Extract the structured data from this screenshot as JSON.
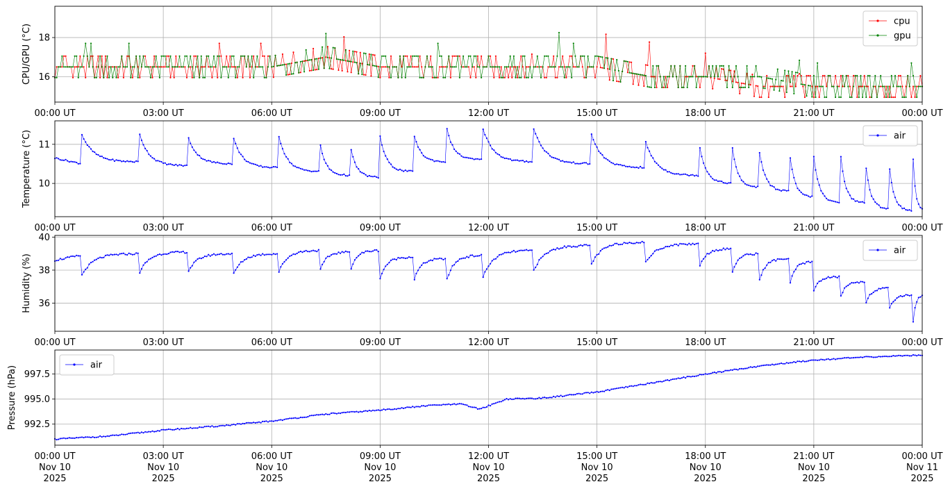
{
  "x_ticks": [
    "00:00 UT",
    "03:00 UT",
    "06:00 UT",
    "09:00 UT",
    "12:00 UT",
    "15:00 UT",
    "18:00 UT",
    "21:00 UT",
    "00:00 UT"
  ],
  "x_ticks_bottom_date": [
    [
      "Nov 10",
      "2025"
    ],
    [
      "Nov 10",
      "2025"
    ],
    [
      "Nov 10",
      "2025"
    ],
    [
      "Nov 10",
      "2025"
    ],
    [
      "Nov 10",
      "2025"
    ],
    [
      "Nov 10",
      "2025"
    ],
    [
      "Nov 10",
      "2025"
    ],
    [
      "Nov 10",
      "2025"
    ],
    [
      "Nov 11",
      "2025"
    ]
  ],
  "chart_data": [
    {
      "type": "line",
      "ylabel": "CPU/GPU (°C)",
      "xlim": [
        "2025-11-10T00:00",
        "2025-11-11T00:00"
      ],
      "ylim": [
        14.7,
        19.6
      ],
      "yticks": [
        16,
        18
      ],
      "grid": true,
      "legend": "top-right",
      "series": [
        {
          "name": "cpu",
          "color": "#ff0000",
          "x": [
            "00:00",
            "00:45",
            "02:00",
            "03:40",
            "04:50",
            "06:00",
            "07:30",
            "09:00",
            "10:30",
            "12:00",
            "13:30",
            "15:00",
            "16:30",
            "18:00",
            "19:30",
            "21:00",
            "22:30",
            "24:00"
          ],
          "values": [
            16.5,
            16.5,
            16.5,
            16.5,
            16.5,
            16.5,
            17.0,
            16.5,
            16.5,
            16.5,
            16.5,
            16.5,
            16.0,
            16.0,
            15.5,
            15.5,
            15.5,
            15.5
          ]
        },
        {
          "name": "gpu",
          "color": "#008000",
          "x": [
            "00:00",
            "00:45",
            "02:00",
            "03:40",
            "04:50",
            "06:00",
            "07:30",
            "09:00",
            "10:30",
            "12:00",
            "13:30",
            "15:00",
            "16:30",
            "18:00",
            "19:30",
            "21:00",
            "22:30",
            "24:00"
          ],
          "values": [
            16.5,
            16.5,
            16.5,
            16.5,
            16.5,
            16.5,
            17.0,
            16.5,
            16.5,
            16.5,
            16.5,
            16.5,
            16.0,
            16.0,
            16.0,
            15.5,
            15.5,
            15.5
          ]
        }
      ]
    },
    {
      "type": "line",
      "ylabel": "Temperature (°C)",
      "xlim": [
        "2025-11-10T00:00",
        "2025-11-11T00:00"
      ],
      "ylim": [
        9.15,
        11.6
      ],
      "yticks": [
        10,
        11
      ],
      "grid": true,
      "legend": "top-right",
      "peaks": {
        "x": [
          "00:45",
          "02:20",
          "03:40",
          "04:55",
          "06:10",
          "07:20",
          "08:10",
          "09:00",
          "09:55",
          "10:50",
          "11:50",
          "13:15",
          "14:50",
          "16:20",
          "17:50",
          "18:45",
          "19:30",
          "20:20",
          "21:00",
          "21:45",
          "22:25",
          "23:05",
          "23:45"
        ],
        "values": [
          11.25,
          11.3,
          11.25,
          11.25,
          11.35,
          11.05,
          11.0,
          11.2,
          11.35,
          11.45,
          11.45,
          11.4,
          11.3,
          11.1,
          11.0,
          10.9,
          10.8,
          10.8,
          10.7,
          10.7,
          10.7,
          10.5,
          10.6
        ]
      },
      "troughs": {
        "values": [
          10.5,
          10.55,
          10.45,
          10.5,
          10.4,
          10.3,
          10.2,
          10.15,
          10.3,
          10.55,
          10.6,
          10.55,
          10.5,
          10.4,
          10.2,
          10.0,
          9.9,
          9.8,
          9.65,
          9.5,
          9.5,
          9.35,
          9.3
        ]
      },
      "series": [
        {
          "name": "air",
          "color": "#0000ff"
        }
      ]
    },
    {
      "type": "line",
      "ylabel": "Humidity (%)",
      "xlim": [
        "2025-11-10T00:00",
        "2025-11-11T00:00"
      ],
      "ylim": [
        34.3,
        40.1
      ],
      "yticks": [
        36,
        38,
        40
      ],
      "grid": true,
      "legend": "top-right",
      "dips": {
        "x": [
          "00:45",
          "02:20",
          "03:40",
          "04:55",
          "06:10",
          "07:20",
          "08:10",
          "09:00",
          "09:55",
          "10:50",
          "11:50",
          "13:15",
          "14:50",
          "16:20",
          "17:50",
          "18:45",
          "19:30",
          "20:20",
          "21:00",
          "21:45",
          "22:25",
          "23:05",
          "23:45"
        ],
        "values": [
          37.7,
          37.8,
          37.8,
          37.6,
          37.7,
          37.9,
          37.9,
          37.5,
          37.2,
          37.3,
          37.5,
          38.0,
          38.3,
          38.4,
          38.2,
          37.9,
          37.4,
          37.0,
          36.8,
          36.4,
          35.8,
          35.6,
          34.9
        ]
      },
      "recovered": {
        "values": [
          38.9,
          39.0,
          39.1,
          39.0,
          39.0,
          39.2,
          39.1,
          39.2,
          38.8,
          38.7,
          38.9,
          39.2,
          39.5,
          39.7,
          39.6,
          39.3,
          39.0,
          38.7,
          38.5,
          37.6,
          37.3,
          36.9,
          36.5
        ]
      },
      "series": [
        {
          "name": "air",
          "color": "#0000ff"
        }
      ]
    },
    {
      "type": "line",
      "ylabel": "Pressure (hPa)",
      "xlim": [
        "2025-11-10T00:00",
        "2025-11-11T00:00"
      ],
      "ylim": [
        990.4,
        999.9
      ],
      "yticks": [
        992.5,
        995.0,
        997.5
      ],
      "grid": true,
      "legend": "top-left",
      "series": [
        {
          "name": "air",
          "color": "#0000ff",
          "x": [
            "00:00",
            "01:30",
            "03:00",
            "04:30",
            "06:00",
            "07:30",
            "09:00",
            "10:30",
            "11:15",
            "11:45",
            "12:30",
            "13:30",
            "15:00",
            "16:30",
            "18:00",
            "19:30",
            "21:00",
            "22:30",
            "24:00"
          ],
          "values": [
            991.0,
            991.3,
            991.9,
            992.3,
            992.8,
            993.5,
            993.9,
            994.4,
            994.5,
            994.0,
            995.0,
            995.1,
            995.7,
            996.6,
            997.5,
            998.3,
            998.9,
            999.2,
            999.4
          ]
        }
      ]
    }
  ]
}
